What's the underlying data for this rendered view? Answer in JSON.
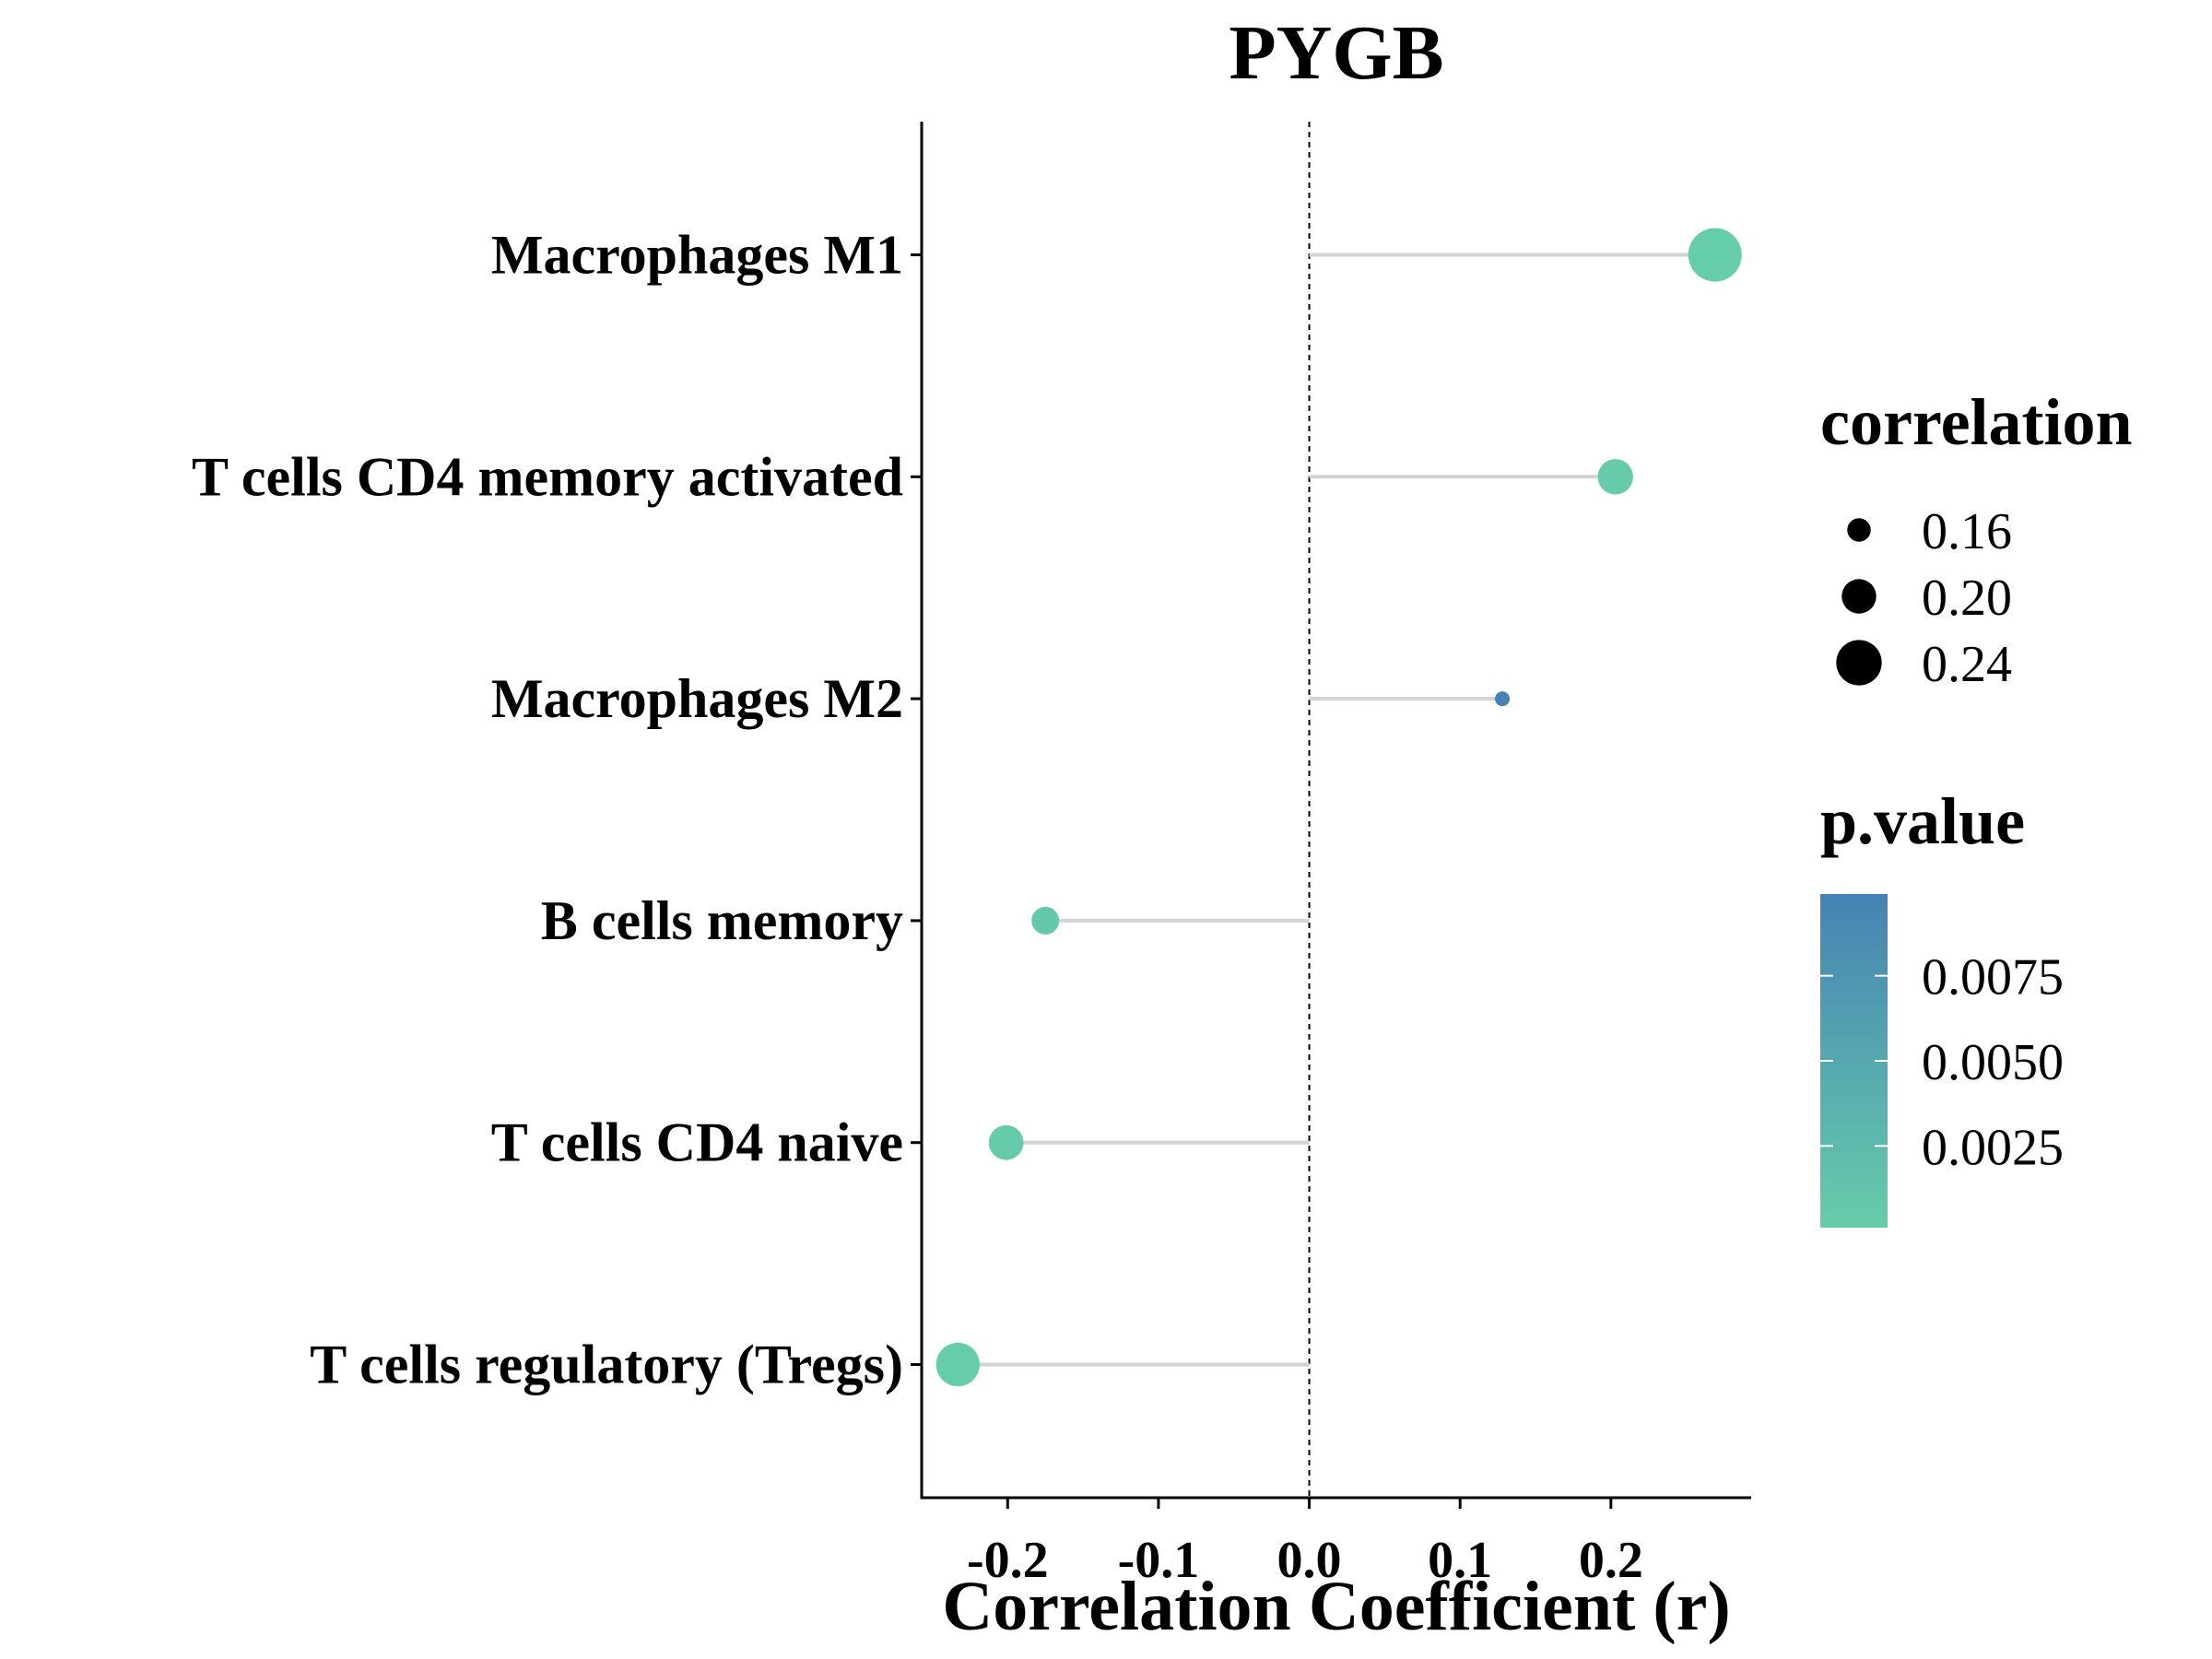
{
  "chart_data": {
    "type": "lollipop",
    "title": "PYGB",
    "xlabel": "Correlation Coefficient (r)",
    "ylabel": "",
    "xlim": [
      -0.257,
      0.293
    ],
    "x_ticks": [
      -0.2,
      -0.1,
      0.0,
      0.1,
      0.2
    ],
    "x_tick_labels": [
      "-0.2",
      "-0.1",
      "0.0",
      "0.1",
      "0.2"
    ],
    "reference_line": 0.0,
    "categories": [
      "Macrophages M1",
      "T cells CD4 memory activated",
      "Macrophages M2",
      "B cells memory",
      "T cells CD4 naive",
      "T cells regulatory (Tregs)"
    ],
    "values": [
      0.269,
      0.203,
      0.128,
      -0.175,
      -0.201,
      -0.233
    ],
    "p_values": [
      0.0001,
      0.0004,
      0.0099,
      0.0007,
      0.0004,
      0.0001
    ],
    "size_legend": {
      "title": "correlation",
      "values": [
        0.16,
        0.2,
        0.24
      ],
      "labels": [
        "0.16",
        "0.20",
        "0.24"
      ]
    },
    "color_legend": {
      "title": "p.value",
      "low_color": "#66CDAA",
      "high_color": "#4682B4",
      "range": [
        0.0001,
        0.0099
      ],
      "ticks": [
        0.0075,
        0.005,
        0.0025
      ],
      "tick_labels": [
        "0.0075",
        "0.0050",
        "0.0025"
      ]
    },
    "stem_color": "#d3d3d3",
    "grid": false,
    "legend_position": "right"
  }
}
